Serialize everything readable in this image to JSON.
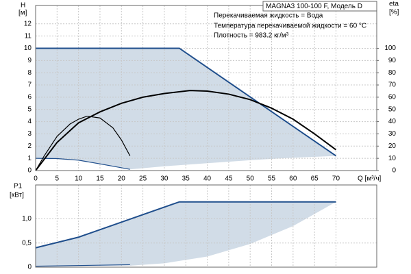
{
  "chart_data": [
    {
      "type": "line",
      "title": "MAGNA3 100-100 F, Модель D",
      "annotations": [
        "Перекачиваемая жидкость = Вода",
        "Температура перекачиваемой жидкости = 60 °C",
        "Плотность = 983.2 кг/м³"
      ],
      "y_label": "H",
      "y_unit": "[м]",
      "y2_label": "eta",
      "y2_unit": "[%]",
      "x_label": "Q [м³/ч]",
      "xlim": [
        0,
        79.5
      ],
      "xticks": [
        0,
        5,
        10,
        15,
        20,
        25,
        30,
        35,
        40,
        45,
        50,
        55,
        60,
        65,
        70
      ],
      "ylim": [
        0,
        13.5
      ],
      "yticks": [
        0,
        1,
        2,
        3,
        4,
        5,
        6,
        7,
        8,
        9,
        10,
        11,
        12
      ],
      "y2lim": [
        0,
        135
      ],
      "y2ticks": [
        0,
        10,
        20,
        30,
        40,
        50,
        60,
        70,
        80,
        90,
        100
      ],
      "grid": true,
      "series": [
        {
          "fill": true,
          "color": "#ccd8e4",
          "x": [
            0,
            33.5,
            70,
            60,
            50,
            40,
            30,
            22,
            15,
            10,
            5,
            0
          ],
          "values": [
            10,
            10,
            1.2,
            1.05,
            0.85,
            0.6,
            0.35,
            0.1,
            0.5,
            0.8,
            0.95,
            1.0
          ]
        },
        {
          "color": "#1f4e8c",
          "width": 2,
          "x": [
            0,
            33.5,
            70
          ],
          "values": [
            10,
            10,
            1.2
          ]
        },
        {
          "color": "#1f4e8c",
          "width": 1.2,
          "x": [
            0,
            5,
            10,
            15,
            22
          ],
          "values": [
            1.0,
            0.98,
            0.85,
            0.55,
            0.1
          ]
        },
        {
          "color": "#000000",
          "width": 2,
          "x": [
            0,
            5,
            10,
            15,
            20,
            25,
            30,
            36,
            40,
            45,
            50,
            55,
            60,
            65,
            70
          ],
          "values": [
            0,
            2.3,
            3.9,
            4.8,
            5.5,
            6.0,
            6.3,
            6.55,
            6.5,
            6.25,
            5.8,
            5.1,
            4.2,
            3.0,
            1.7
          ]
        },
        {
          "color": "#000000",
          "width": 1.2,
          "axis": "y2",
          "x": [
            0,
            2,
            5,
            8,
            10,
            12,
            15,
            18,
            20,
            22
          ],
          "values": [
            0,
            12,
            28,
            38,
            42,
            44.5,
            43,
            35,
            25,
            12
          ]
        }
      ]
    },
    {
      "type": "line",
      "y_label": "P1",
      "y_unit": "[кВт]",
      "xlim": [
        0,
        79.5
      ],
      "xticks": [
        0,
        5,
        10,
        15,
        20,
        25,
        30,
        35,
        40,
        45,
        50,
        55,
        60,
        65,
        70
      ],
      "ylim": [
        0,
        1.7
      ],
      "yticks": [
        0,
        {
          "value": 0.5,
          "label": "0,5"
        },
        {
          "value": 1.0,
          "label": "1,0"
        }
      ],
      "grid": true,
      "series": [
        {
          "fill": true,
          "color": "#ccd8e4",
          "x": [
            0,
            10,
            20,
            33.5,
            70,
            60,
            50,
            40,
            30,
            22,
            22,
            0
          ],
          "values": [
            0.4,
            0.62,
            0.93,
            1.35,
            1.35,
            0.85,
            0.48,
            0.22,
            0.08,
            0.03,
            0.05,
            0.02
          ]
        },
        {
          "color": "#1f4e8c",
          "width": 2,
          "x": [
            0,
            10,
            20,
            33.5,
            70
          ],
          "values": [
            0.4,
            0.62,
            0.93,
            1.35,
            1.35
          ]
        },
        {
          "color": "#1f4e8c",
          "width": 1.2,
          "x": [
            0,
            22
          ],
          "values": [
            0.02,
            0.05
          ]
        }
      ]
    }
  ]
}
